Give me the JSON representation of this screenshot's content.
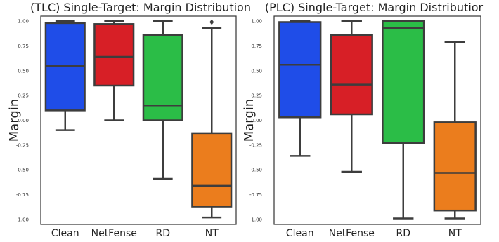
{
  "chart_data": [
    {
      "type": "box",
      "title": "(TLC) Single-Target: Margin Distribution",
      "ylabel": "Margin",
      "ylim": [
        -1.05,
        1.05
      ],
      "yticks": [
        "1.00",
        "0.75",
        "0.50",
        "0.25",
        "0.00",
        "-0.25",
        "-0.50",
        "-0.75",
        "-1.00"
      ],
      "categories": [
        "Clean",
        "NetFense",
        "RD",
        "NT"
      ],
      "boxes": [
        {
          "name": "Clean",
          "color": "#1f4de8",
          "whisker_low": -0.1,
          "q1": 0.1,
          "median": 0.55,
          "q3": 0.98,
          "whisker_high": 1.0,
          "outliers": []
        },
        {
          "name": "NetFense",
          "color": "#d71f26",
          "whisker_low": 0.0,
          "q1": 0.35,
          "median": 0.64,
          "q3": 0.97,
          "whisker_high": 1.0,
          "outliers": []
        },
        {
          "name": "RD",
          "color": "#2bbd47",
          "whisker_low": -0.59,
          "q1": 0.0,
          "median": 0.15,
          "q3": 0.86,
          "whisker_high": 1.0,
          "outliers": []
        },
        {
          "name": "NT",
          "color": "#eb7d1d",
          "whisker_low": -0.98,
          "q1": -0.87,
          "median": -0.66,
          "q3": -0.13,
          "whisker_high": 0.93,
          "outliers": [
            0.99
          ]
        }
      ]
    },
    {
      "type": "box",
      "title": "(PLC) Single-Target: Margin Distributior",
      "ylabel": "Margin",
      "ylim": [
        -1.05,
        1.05
      ],
      "yticks": [
        "1.00",
        "0.75",
        "0.50",
        "0.25",
        "0.00",
        "-0.25",
        "-0.50",
        "-0.75",
        "-1.00"
      ],
      "categories": [
        "Clean",
        "NetFense",
        "RD",
        "NT"
      ],
      "boxes": [
        {
          "name": "Clean",
          "color": "#1f4de8",
          "whisker_low": -0.36,
          "q1": 0.03,
          "median": 0.56,
          "q3": 0.99,
          "whisker_high": 1.0,
          "outliers": []
        },
        {
          "name": "NetFense",
          "color": "#d71f26",
          "whisker_low": -0.52,
          "q1": 0.06,
          "median": 0.36,
          "q3": 0.86,
          "whisker_high": 1.0,
          "outliers": []
        },
        {
          "name": "RD",
          "color": "#2bbd47",
          "whisker_low": -0.99,
          "q1": -0.23,
          "median": 0.93,
          "q3": 1.0,
          "whisker_high": 1.0,
          "outliers": []
        },
        {
          "name": "NT",
          "color": "#eb7d1d",
          "whisker_low": -0.99,
          "q1": -0.91,
          "median": -0.53,
          "q3": -0.02,
          "whisker_high": 0.79,
          "outliers": []
        }
      ]
    }
  ]
}
